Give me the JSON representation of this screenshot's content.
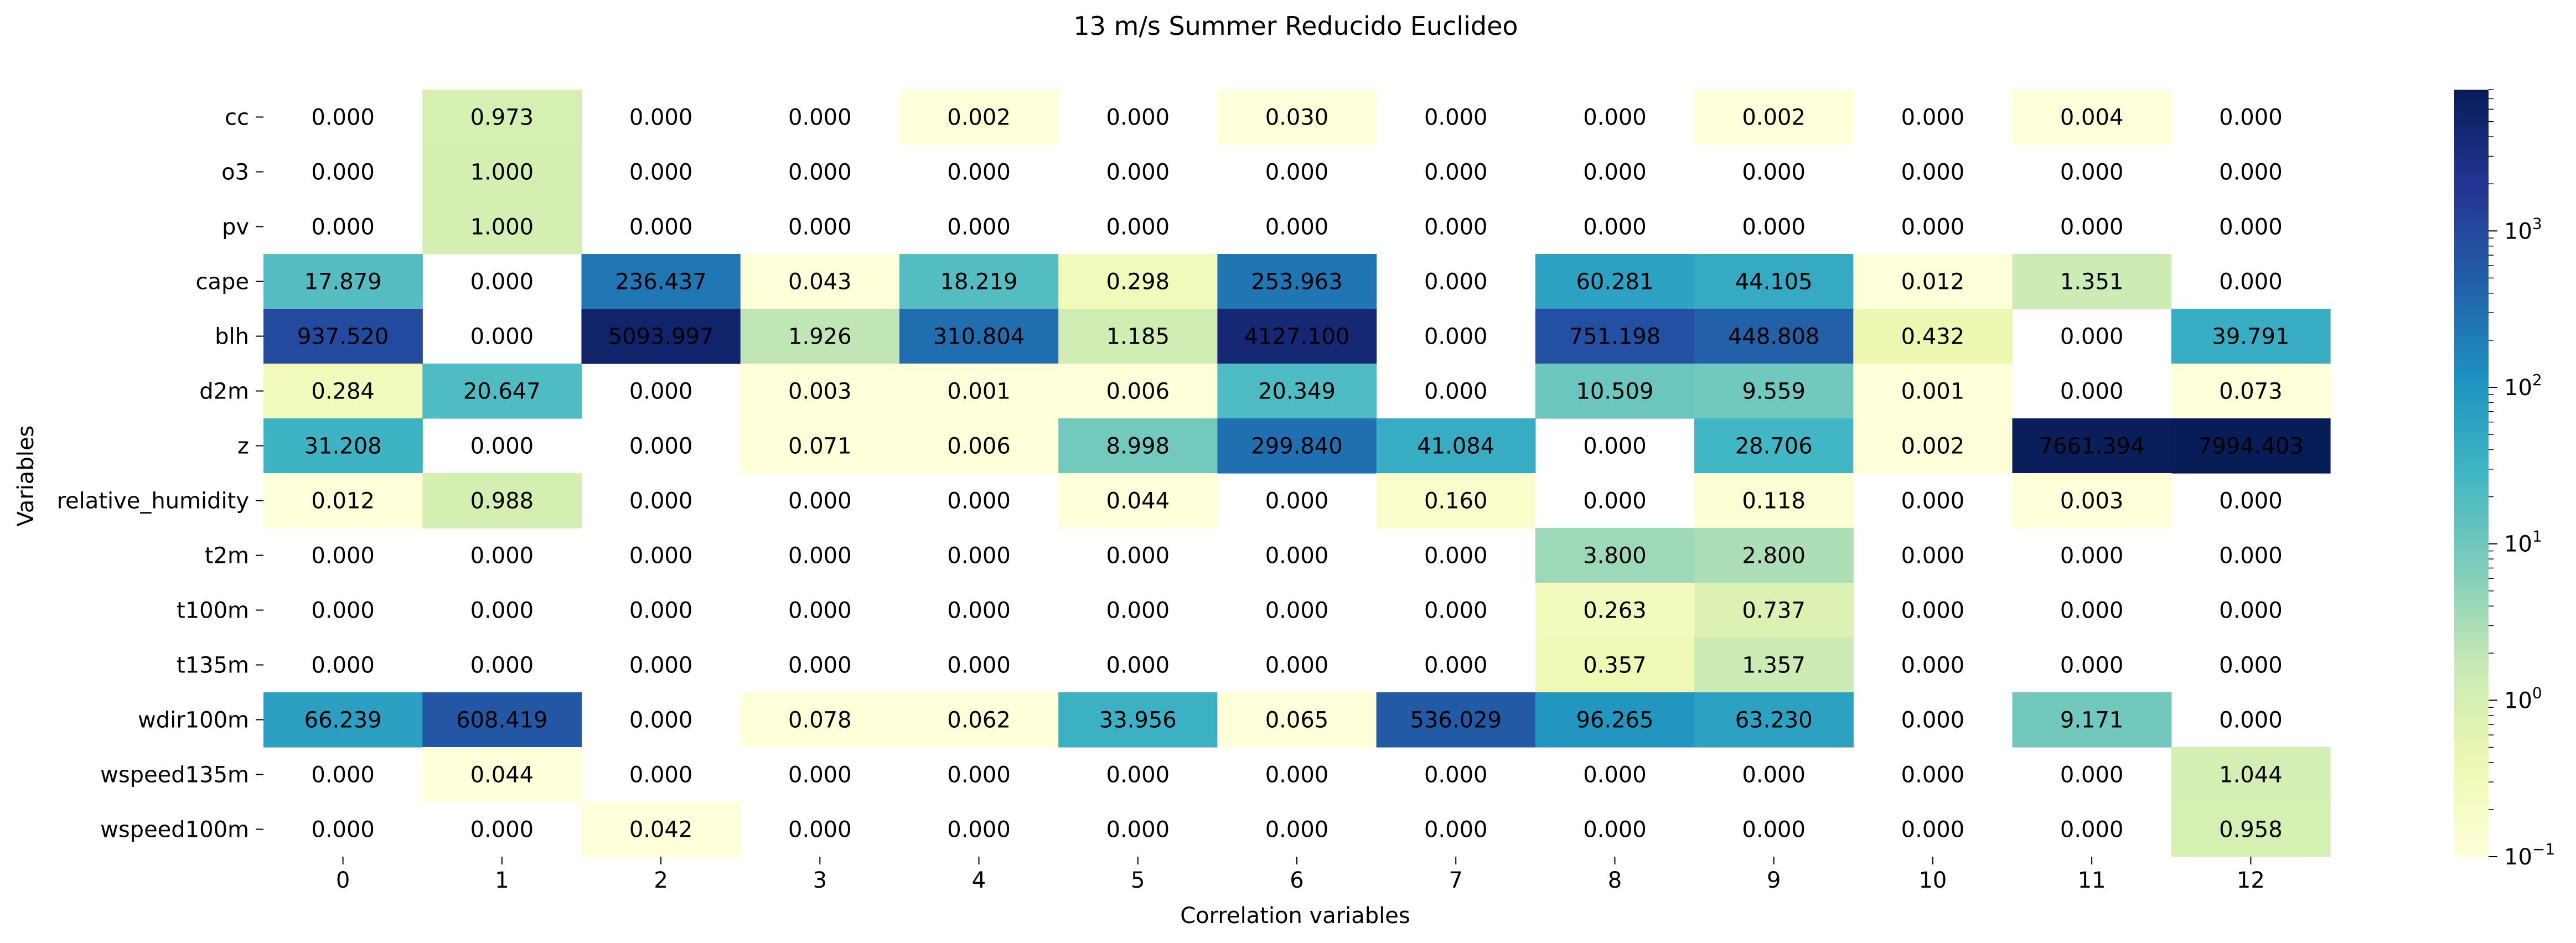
{
  "chart_data": {
    "type": "heatmap",
    "title": "13 m/s Summer Reducido Euclideo",
    "xlabel": "Correlation variables",
    "ylabel": "Variables",
    "columns": [
      "0",
      "1",
      "2",
      "3",
      "4",
      "5",
      "6",
      "7",
      "8",
      "9",
      "10",
      "11",
      "12"
    ],
    "rows": [
      "cc",
      "o3",
      "pv",
      "cape",
      "blh",
      "d2m",
      "z",
      "relative_humidity",
      "t2m",
      "t100m",
      "t135m",
      "wdir100m",
      "wspeed135m",
      "wspeed100m"
    ],
    "values": [
      [
        0.0,
        0.973,
        0.0,
        0.0,
        0.002,
        0.0,
        0.03,
        0.0,
        0.0,
        0.002,
        0.0,
        0.004,
        0.0
      ],
      [
        0.0,
        1.0,
        0.0,
        0.0,
        0.0,
        0.0,
        0.0,
        0.0,
        0.0,
        0.0,
        0.0,
        0.0,
        0.0
      ],
      [
        0.0,
        1.0,
        0.0,
        0.0,
        0.0,
        0.0,
        0.0,
        0.0,
        0.0,
        0.0,
        0.0,
        0.0,
        0.0
      ],
      [
        17.879,
        0.0,
        236.437,
        0.043,
        18.219,
        0.298,
        253.963,
        0.0,
        60.281,
        44.105,
        0.012,
        1.351,
        0.0
      ],
      [
        937.52,
        0.0,
        5093.997,
        1.926,
        310.804,
        1.185,
        4127.1,
        0.0,
        751.198,
        448.808,
        0.432,
        0.0,
        39.791
      ],
      [
        0.284,
        20.647,
        0.0,
        0.003,
        0.001,
        0.006,
        20.349,
        0.0,
        10.509,
        9.559,
        0.001,
        0.0,
        0.073
      ],
      [
        31.208,
        0.0,
        0.0,
        0.071,
        0.006,
        8.998,
        299.84,
        41.084,
        0.0,
        28.706,
        0.002,
        7661.394,
        7994.403
      ],
      [
        0.012,
        0.988,
        0.0,
        0.0,
        0.0,
        0.044,
        0.0,
        0.16,
        0.0,
        0.118,
        0.0,
        0.003,
        0.0
      ],
      [
        0.0,
        0.0,
        0.0,
        0.0,
        0.0,
        0.0,
        0.0,
        0.0,
        3.8,
        2.8,
        0.0,
        0.0,
        0.0
      ],
      [
        0.0,
        0.0,
        0.0,
        0.0,
        0.0,
        0.0,
        0.0,
        0.0,
        0.263,
        0.737,
        0.0,
        0.0,
        0.0
      ],
      [
        0.0,
        0.0,
        0.0,
        0.0,
        0.0,
        0.0,
        0.0,
        0.0,
        0.357,
        1.357,
        0.0,
        0.0,
        0.0
      ],
      [
        66.239,
        608.419,
        0.0,
        0.078,
        0.062,
        33.956,
        0.065,
        536.029,
        96.265,
        63.23,
        0.0,
        9.171,
        0.0
      ],
      [
        0.0,
        0.044,
        0.0,
        0.0,
        0.0,
        0.0,
        0.0,
        0.0,
        0.0,
        0.0,
        0.0,
        0.0,
        1.044
      ],
      [
        0.0,
        0.0,
        0.042,
        0.0,
        0.0,
        0.0,
        0.0,
        0.0,
        0.0,
        0.0,
        0.0,
        0.0,
        0.958
      ]
    ],
    "color_scale": {
      "type": "log",
      "colormap": "YlGnBu",
      "min": 0.1,
      "max": 8000,
      "zero_cells": "blank (white)"
    },
    "colorbar_ticks": [
      {
        "base": "10",
        "exp": "3",
        "value": 1000
      },
      {
        "base": "10",
        "exp": "2",
        "value": 100
      },
      {
        "base": "10",
        "exp": "1",
        "value": 10
      },
      {
        "base": "10",
        "exp": "0",
        "value": 1
      },
      {
        "base": "10",
        "exp": "−1",
        "value": 0.1
      }
    ],
    "grid": false,
    "legend_placement": "right colorbar"
  }
}
